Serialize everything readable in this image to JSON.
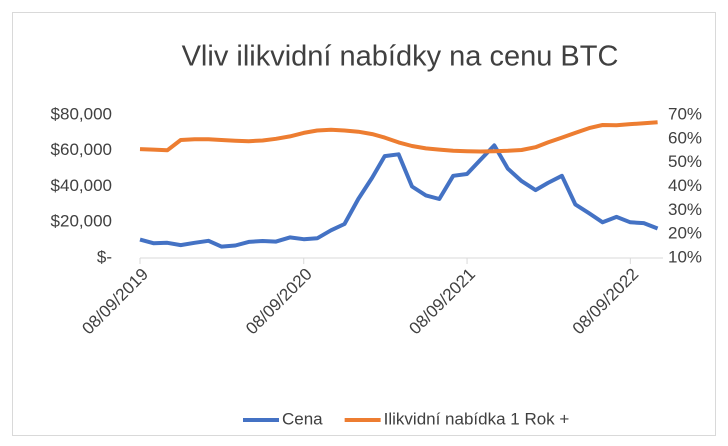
{
  "chart_data": {
    "type": "line",
    "title": "Vliv ilikvidní nabídky na cenu BTC",
    "x": [
      "2019-09-08",
      "2019-10-08",
      "2019-11-08",
      "2019-12-08",
      "2020-01-08",
      "2020-02-08",
      "2020-03-08",
      "2020-04-08",
      "2020-05-08",
      "2020-06-08",
      "2020-07-08",
      "2020-08-08",
      "2020-09-08",
      "2020-10-08",
      "2020-11-08",
      "2020-12-08",
      "2021-01-08",
      "2021-02-08",
      "2021-03-08",
      "2021-04-08",
      "2021-05-08",
      "2021-06-08",
      "2021-07-08",
      "2021-08-08",
      "2021-09-08",
      "2021-10-08",
      "2021-11-08",
      "2021-12-08",
      "2022-01-08",
      "2022-02-08",
      "2022-03-08",
      "2022-04-08",
      "2022-05-08",
      "2022-06-08",
      "2022-07-08",
      "2022-08-08",
      "2022-09-08",
      "2022-10-08",
      "2022-11-08"
    ],
    "series": [
      {
        "name": "Cena",
        "color": "#4472c4",
        "axis": "y",
        "values": [
          10300,
          8300,
          8500,
          7200,
          8500,
          9600,
          6400,
          7000,
          9000,
          9500,
          9200,
          11500,
          10500,
          11000,
          15500,
          19000,
          33000,
          45000,
          57000,
          58000,
          40000,
          35000,
          33000,
          46000,
          47000,
          55000,
          63000,
          50000,
          43000,
          38000,
          42000,
          46000,
          30000,
          25000,
          20000,
          23000,
          20000,
          19500,
          16500
        ]
      },
      {
        "name": "Ilikvidní nabídka 1 Rok +",
        "color": "#ed7d31",
        "axis": "y2",
        "values": [
          55.7,
          55.5,
          55.2,
          59.5,
          59.8,
          59.8,
          59.5,
          59.2,
          59.0,
          59.3,
          60,
          61,
          62.5,
          63.5,
          63.8,
          63.5,
          63,
          62,
          60.5,
          58.5,
          57,
          56,
          55.5,
          55,
          54.8,
          54.7,
          54.8,
          55,
          55.3,
          56.5,
          58.5,
          60.5,
          62.5,
          64.5,
          65.8,
          65.7,
          66.2,
          66.5,
          67
        ]
      }
    ],
    "xlim": [
      "2019-09-08",
      "2022-11-20"
    ],
    "xticks": [
      {
        "value": "2019-09-08",
        "label": "08/09/2019"
      },
      {
        "value": "2020-09-08",
        "label": "08/09/2020"
      },
      {
        "value": "2021-09-08",
        "label": "08/09/2021"
      },
      {
        "value": "2022-09-08",
        "label": "08/09/2022"
      }
    ],
    "ylim": [
      0,
      80000
    ],
    "yticks": [
      {
        "value": 0,
        "label": "$-"
      },
      {
        "value": 20000,
        "label": "$20,000"
      },
      {
        "value": 40000,
        "label": "$40,000"
      },
      {
        "value": 60000,
        "label": "$60,000"
      },
      {
        "value": 80000,
        "label": "$80,000"
      }
    ],
    "y2lim": [
      10,
      70
    ],
    "y2ticks": [
      {
        "value": 10,
        "label": "10%"
      },
      {
        "value": 20,
        "label": "20%"
      },
      {
        "value": 30,
        "label": "30%"
      },
      {
        "value": 40,
        "label": "40%"
      },
      {
        "value": 50,
        "label": "50%"
      },
      {
        "value": 60,
        "label": "60%"
      },
      {
        "value": 70,
        "label": "70%"
      }
    ],
    "legend": "bottom"
  }
}
